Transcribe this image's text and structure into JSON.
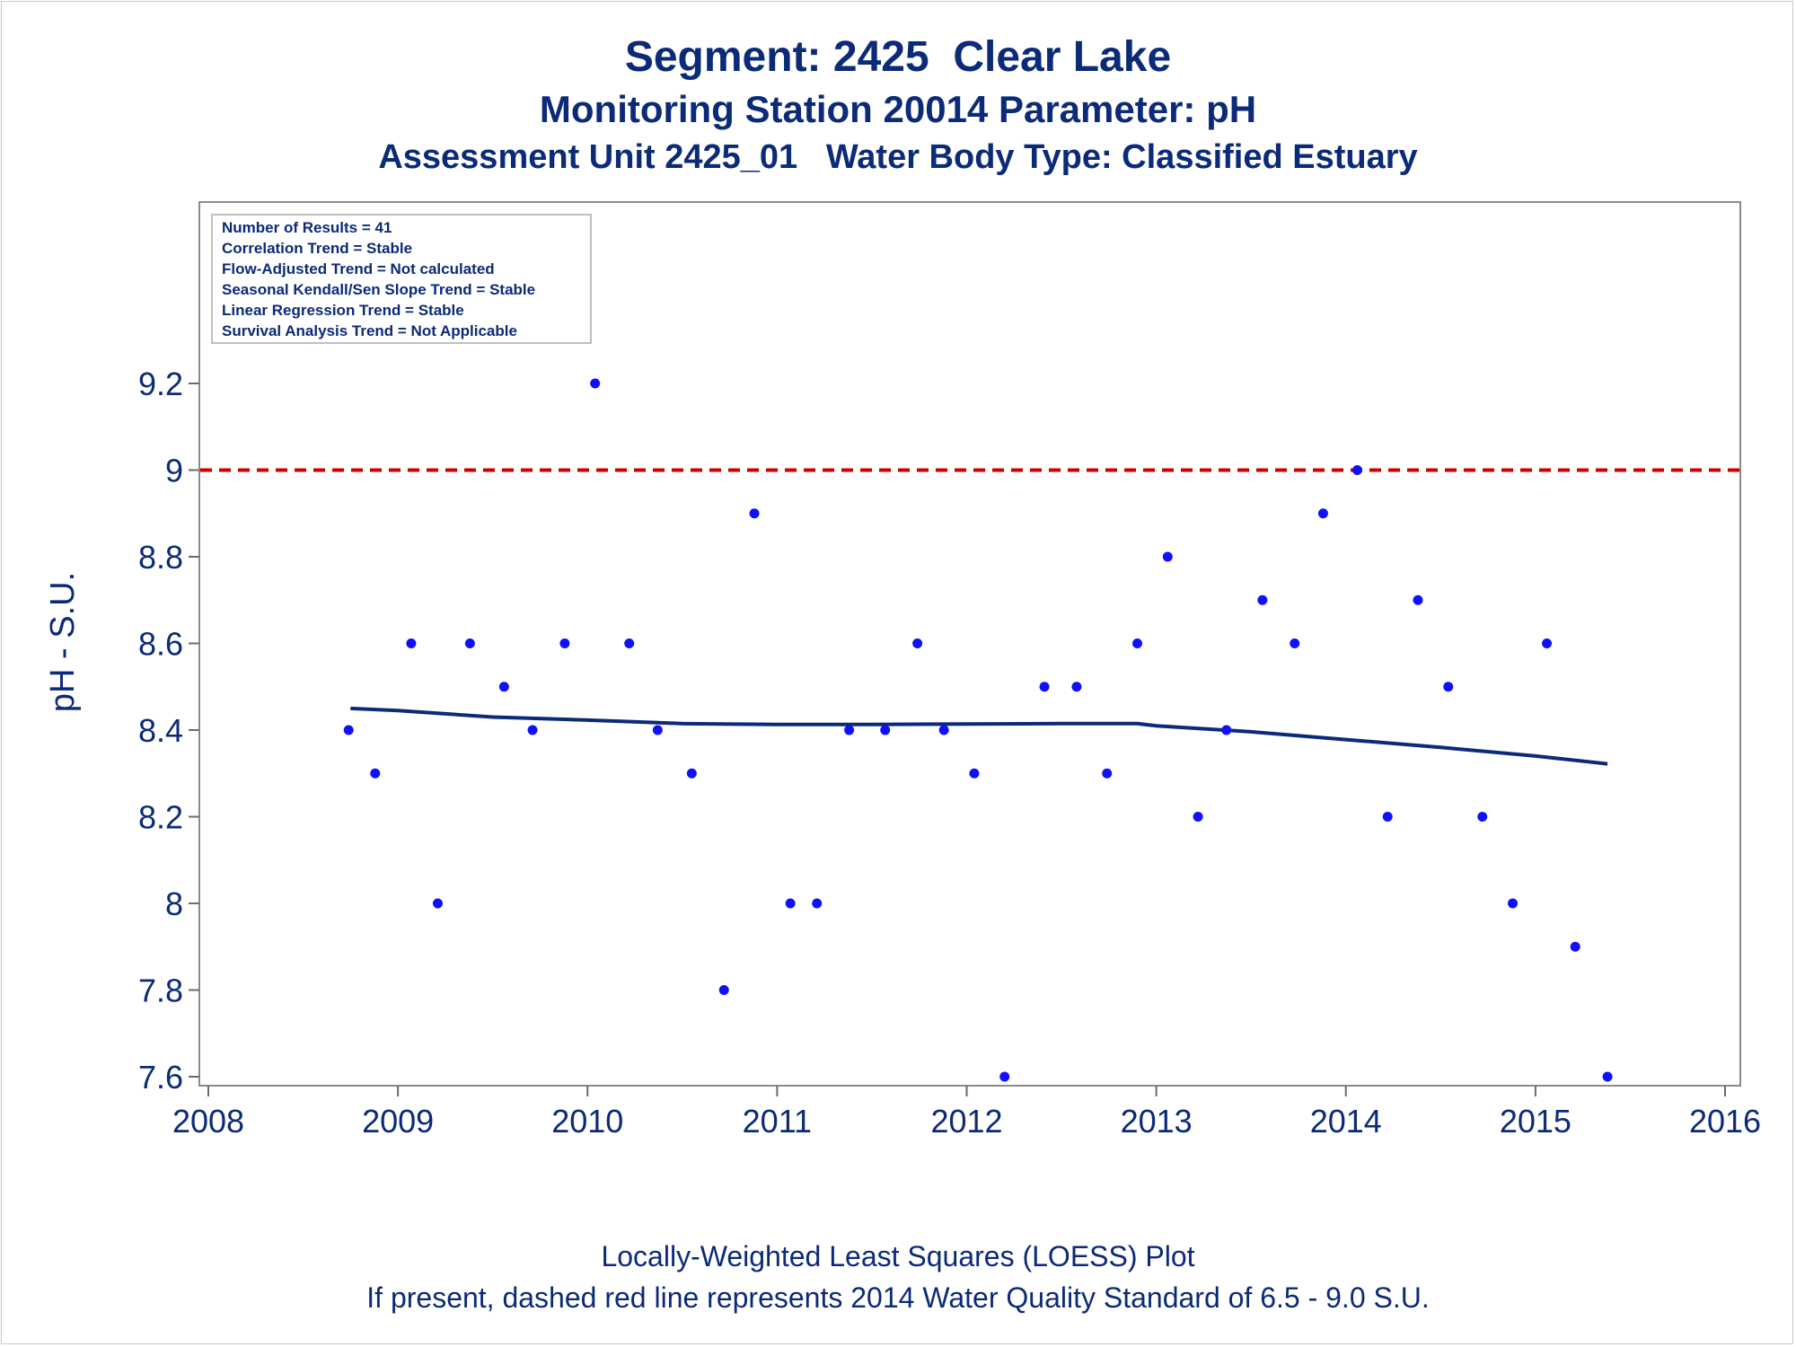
{
  "chart_data": {
    "type": "scatter",
    "title": "Segment: 2425  Clear Lake",
    "subtitle": "Monitoring Station 20014 Parameter: pH",
    "subtitle2": "Assessment Unit 2425_01   Water Body Type: Classified Estuary",
    "xlabel": "",
    "ylabel": "pH - S.U.",
    "xlim": [
      2008,
      2016
    ],
    "ylim": [
      7.58,
      9.22
    ],
    "x_ticks": [
      2008,
      2009,
      2010,
      2011,
      2012,
      2013,
      2014,
      2015,
      2016
    ],
    "x_tick_labels": [
      "2008",
      "2009",
      "2010",
      "2011",
      "2012",
      "2013",
      "2014",
      "2015",
      "2016"
    ],
    "y_ticks": [
      7.6,
      7.8,
      8.0,
      8.2,
      8.4,
      8.6,
      8.8,
      9.0,
      9.2
    ],
    "y_tick_labels": [
      "7.6",
      "7.8",
      "8",
      "8.2",
      "8.4",
      "8.6",
      "8.8",
      "9",
      "9.2"
    ],
    "grid": false,
    "series": [
      {
        "type": "scatter",
        "color": "#1010ff",
        "points": [
          [
            2008.74,
            8.4
          ],
          [
            2008.88,
            8.3
          ],
          [
            2009.07,
            8.6
          ],
          [
            2009.21,
            8.0
          ],
          [
            2009.38,
            8.6
          ],
          [
            2009.56,
            8.5
          ],
          [
            2009.71,
            8.4
          ],
          [
            2009.88,
            8.6
          ],
          [
            2010.04,
            9.2
          ],
          [
            2010.22,
            8.6
          ],
          [
            2010.37,
            8.4
          ],
          [
            2010.55,
            8.3
          ],
          [
            2010.72,
            7.8
          ],
          [
            2010.88,
            8.9
          ],
          [
            2011.07,
            8.0
          ],
          [
            2011.21,
            8.0
          ],
          [
            2011.38,
            8.4
          ],
          [
            2011.57,
            8.4
          ],
          [
            2011.74,
            8.6
          ],
          [
            2011.88,
            8.4
          ],
          [
            2012.04,
            8.3
          ],
          [
            2012.2,
            7.6
          ],
          [
            2012.41,
            8.5
          ],
          [
            2012.58,
            8.5
          ],
          [
            2012.74,
            8.3
          ],
          [
            2012.9,
            8.6
          ],
          [
            2013.06,
            8.8
          ],
          [
            2013.22,
            8.2
          ],
          [
            2013.37,
            8.4
          ],
          [
            2013.56,
            8.7
          ],
          [
            2013.73,
            8.6
          ],
          [
            2013.88,
            8.9
          ],
          [
            2014.06,
            9.0
          ],
          [
            2014.22,
            8.2
          ],
          [
            2014.38,
            8.7
          ],
          [
            2014.54,
            8.5
          ],
          [
            2014.72,
            8.2
          ],
          [
            2014.88,
            8.0
          ],
          [
            2015.06,
            8.6
          ],
          [
            2015.21,
            7.9
          ],
          [
            2015.38,
            7.6
          ]
        ]
      },
      {
        "type": "line",
        "color": "#0b2a78",
        "points": [
          [
            2008.75,
            8.45
          ],
          [
            2009.0,
            8.445
          ],
          [
            2009.5,
            8.43
          ],
          [
            2010.0,
            8.423
          ],
          [
            2010.5,
            8.415
          ],
          [
            2011.0,
            8.413
          ],
          [
            2011.5,
            8.413
          ],
          [
            2012.0,
            8.414
          ],
          [
            2012.5,
            8.415
          ],
          [
            2012.9,
            8.415
          ],
          [
            2013.0,
            8.41
          ],
          [
            2013.5,
            8.396
          ],
          [
            2014.0,
            8.378
          ],
          [
            2014.5,
            8.36
          ],
          [
            2015.0,
            8.34
          ],
          [
            2015.38,
            8.322
          ]
        ]
      }
    ],
    "reference_line": {
      "y": 9.0,
      "color": "#cc0000",
      "style": "dashed"
    },
    "annotation_lines": [
      "Number of Results = 41",
      "Correlation Trend = Stable",
      "Flow-Adjusted Trend = Not calculated",
      "Seasonal Kendall/Sen Slope Trend = Stable",
      "Linear Regression Trend = Stable",
      "Survival Analysis Trend = Not Applicable"
    ],
    "footnotes": [
      "Locally-Weighted Least Squares (LOESS) Plot",
      "If present, dashed red line represents 2014 Water Quality Standard of 6.5 - 9.0 S.U."
    ]
  }
}
